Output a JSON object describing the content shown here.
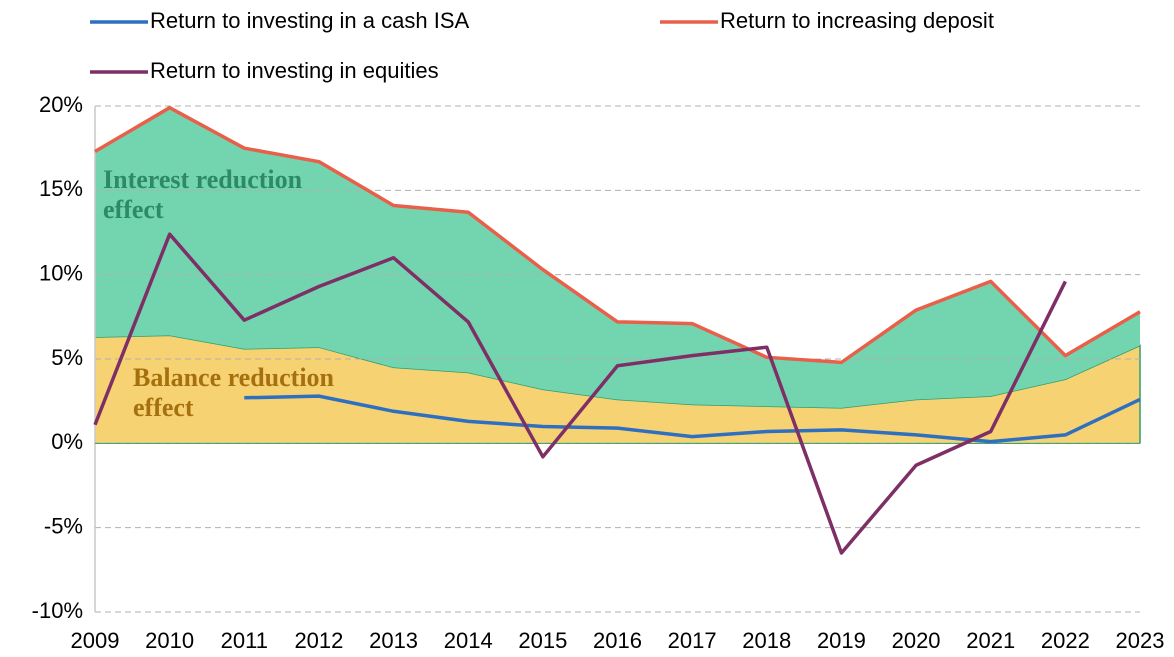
{
  "chart_data": {
    "type": "line",
    "categories": [
      "2009",
      "2010",
      "2011",
      "2012",
      "2013",
      "2014",
      "2015",
      "2016",
      "2017",
      "2018",
      "2019",
      "2020",
      "2021",
      "2022",
      "2023"
    ],
    "series": [
      {
        "name": "Return to investing in a cash ISA",
        "color": "#2f6fc0",
        "values": [
          null,
          null,
          2.7,
          2.8,
          1.9,
          1.3,
          1.0,
          0.9,
          0.4,
          0.7,
          0.8,
          0.5,
          0.1,
          0.5,
          2.6
        ]
      },
      {
        "name": "Return to increasing deposit",
        "color": "#e8604a",
        "values": [
          17.3,
          19.9,
          17.5,
          16.7,
          14.1,
          13.7,
          10.3,
          7.2,
          7.1,
          5.1,
          4.8,
          7.9,
          9.6,
          5.2,
          7.8
        ]
      },
      {
        "name": "Return to investing in equities",
        "color": "#7e2f66",
        "values": [
          1.1,
          12.4,
          7.3,
          9.3,
          11.0,
          7.2,
          -0.8,
          4.6,
          5.2,
          5.7,
          -6.5,
          -1.3,
          0.7,
          9.6,
          null
        ]
      }
    ],
    "areas": [
      {
        "name": "Balance reduction effect",
        "color": "#f7d273",
        "label_color": "#a5700e",
        "edge_color": "#2e9e6a",
        "values": [
          6.3,
          6.4,
          5.6,
          5.7,
          4.5,
          4.2,
          3.2,
          2.6,
          2.3,
          2.2,
          2.1,
          2.6,
          2.8,
          3.8,
          5.8
        ]
      },
      {
        "name": "Interest reduction effect",
        "color": "#72d5b0",
        "label_color": "#2e8a66",
        "values": [
          11.0,
          13.5,
          11.9,
          11.0,
          9.6,
          9.5,
          7.1,
          4.6,
          4.8,
          2.9,
          2.7,
          5.3,
          6.8,
          1.4,
          2.0
        ]
      }
    ],
    "ylim": [
      -10,
      20
    ],
    "yticks": [
      {
        "value": -10,
        "label": "-10%"
      },
      {
        "value": -5,
        "label": "-5%"
      },
      {
        "value": 0,
        "label": "0%"
      },
      {
        "value": 5,
        "label": "5%"
      },
      {
        "value": 10,
        "label": "10%"
      },
      {
        "value": 15,
        "label": "15%"
      },
      {
        "value": 20,
        "label": "20%"
      }
    ],
    "grid": true
  }
}
